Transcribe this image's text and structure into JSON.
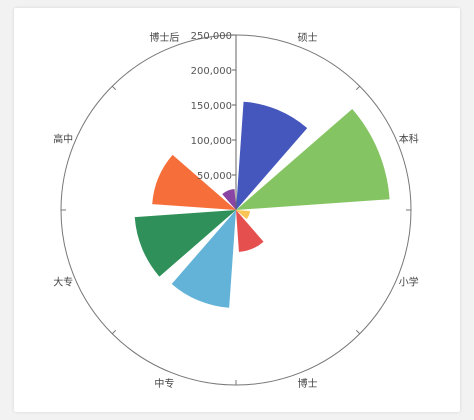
{
  "chart_data": {
    "type": "polar-bar",
    "categories": [
      "硕士",
      "本科",
      "小学",
      "博士",
      "中专",
      "大专",
      "高中",
      "博士后"
    ],
    "values": [
      155000,
      220000,
      20000,
      60000,
      140000,
      145000,
      120000,
      30000
    ],
    "radial_ticks": [
      "50,000",
      "100,000",
      "150,000",
      "200,000",
      "250,000"
    ],
    "radial_tick_values": [
      50000,
      100000,
      150000,
      200000,
      250000
    ],
    "rmax": 250000,
    "colors": [
      "#4557bd",
      "#85c462",
      "#f9c453",
      "#e5504f",
      "#63b2d8",
      "#2f9159",
      "#f66f3a",
      "#8a44a3"
    ]
  }
}
